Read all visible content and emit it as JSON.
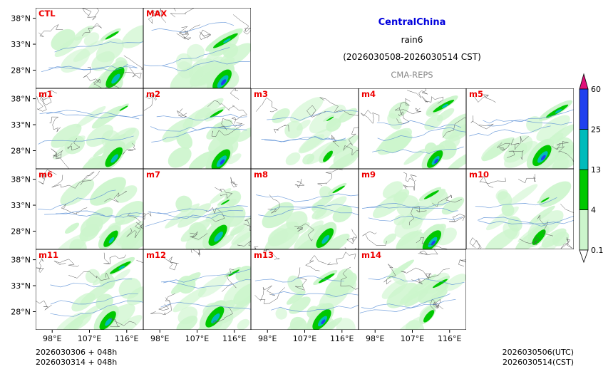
{
  "chart_data": {
    "type": "heatmap",
    "title": "CentralChina",
    "variable": "rain6",
    "period": "(2026030508-2026030514 CST)",
    "source": "CMA-REPS",
    "lat_ticks": [
      "38°N",
      "33°N",
      "28°N"
    ],
    "lon_ticks": [
      "98°E",
      "107°E",
      "116°E"
    ],
    "lat_range": [
      24.5,
      40.0
    ],
    "lon_range": [
      94.0,
      120.0
    ],
    "colorbar": {
      "levels": [
        0.1,
        4,
        13,
        25,
        60
      ],
      "labels": [
        "0.1",
        "4",
        "13",
        "25",
        "60"
      ],
      "colors": [
        "#ccf5cc",
        "#00c800",
        "#00bbbb",
        "#2040ee"
      ],
      "under_color": "#ffffff",
      "over_color": "#e0107a",
      "extend": "both"
    },
    "members": [
      {
        "label": "CTL",
        "intensity": 0.78,
        "north": 0.55,
        "south": 1.0
      },
      {
        "label": "MAX",
        "intensity": 1.0,
        "north": 1.0,
        "south": 1.0
      },
      {
        "label": "m1",
        "intensity": 0.7,
        "north": 0.35,
        "south": 0.95
      },
      {
        "label": "m2",
        "intensity": 0.9,
        "north": 0.55,
        "south": 1.0
      },
      {
        "label": "m3",
        "intensity": 0.45,
        "north": 0.3,
        "south": 0.55
      },
      {
        "label": "m4",
        "intensity": 0.82,
        "north": 0.85,
        "south": 0.85
      },
      {
        "label": "m5",
        "intensity": 0.92,
        "north": 0.9,
        "south": 1.0
      },
      {
        "label": "m6",
        "intensity": 0.6,
        "north": 0.2,
        "south": 0.8
      },
      {
        "label": "m7",
        "intensity": 0.8,
        "north": 0.35,
        "south": 1.0
      },
      {
        "label": "m8",
        "intensity": 0.72,
        "north": 0.5,
        "south": 0.95
      },
      {
        "label": "m9",
        "intensity": 0.82,
        "north": 0.6,
        "south": 1.0
      },
      {
        "label": "m10",
        "intensity": 0.55,
        "north": 0.35,
        "south": 0.75
      },
      {
        "label": "m11",
        "intensity": 0.7,
        "north": 0.85,
        "south": 0.9
      },
      {
        "label": "m12",
        "intensity": 0.78,
        "north": 0.45,
        "south": 1.0
      },
      {
        "label": "m13",
        "intensity": 0.82,
        "north": 0.65,
        "south": 1.0
      },
      {
        "label": "m14",
        "intensity": 0.5,
        "north": 0.6,
        "south": 0.6
      }
    ]
  },
  "footer": {
    "init_line1": "2026030306  +  048h",
    "init_line2": "2026030314  +  048h",
    "valid_utc": "2026030506(UTC)",
    "valid_cst": "2026030514(CST)"
  }
}
